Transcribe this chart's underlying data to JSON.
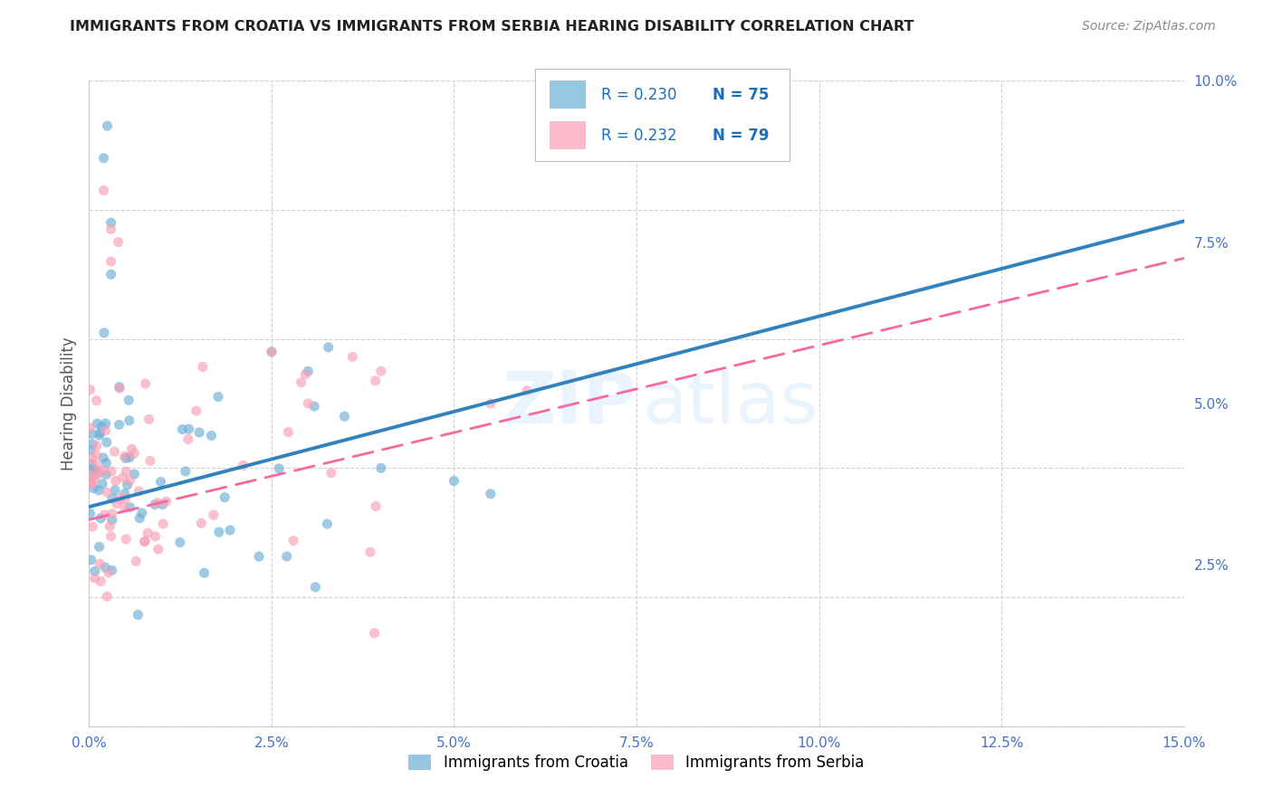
{
  "title": "IMMIGRANTS FROM CROATIA VS IMMIGRANTS FROM SERBIA HEARING DISABILITY CORRELATION CHART",
  "source": "Source: ZipAtlas.com",
  "ylabel": "Hearing Disability",
  "xlim": [
    0.0,
    0.15
  ],
  "ylim": [
    0.0,
    0.1
  ],
  "xticks": [
    0.0,
    0.025,
    0.05,
    0.075,
    0.1,
    0.125,
    0.15
  ],
  "xtick_labels": [
    "0.0%",
    "2.5%",
    "5.0%",
    "7.5%",
    "10.0%",
    "12.5%",
    "15.0%"
  ],
  "yticks": [
    0.0,
    0.025,
    0.05,
    0.075,
    0.1
  ],
  "ytick_labels": [
    "",
    "2.5%",
    "5.0%",
    "7.5%",
    "10.0%"
  ],
  "croatia_color": "#6baed6",
  "serbia_color": "#fa9fb5",
  "croatia_line_color": "#3182bd",
  "serbia_line_color": "#f768a1",
  "R_croatia": 0.23,
  "N_croatia": 75,
  "R_serbia": 0.232,
  "N_serbia": 79,
  "background_color": "#ffffff",
  "grid_color": "#cccccc",
  "tick_color": "#4472c4",
  "title_color": "#222222",
  "source_color": "#888888",
  "watermark_color": "#ddeeff",
  "legend_text_color": "#1a6fba",
  "legend_N_color": "#1a6fba",
  "croatia_line_intercept": 0.035,
  "croatia_line_slope": 0.3,
  "serbia_line_intercept": 0.032,
  "serbia_line_slope": 0.295
}
